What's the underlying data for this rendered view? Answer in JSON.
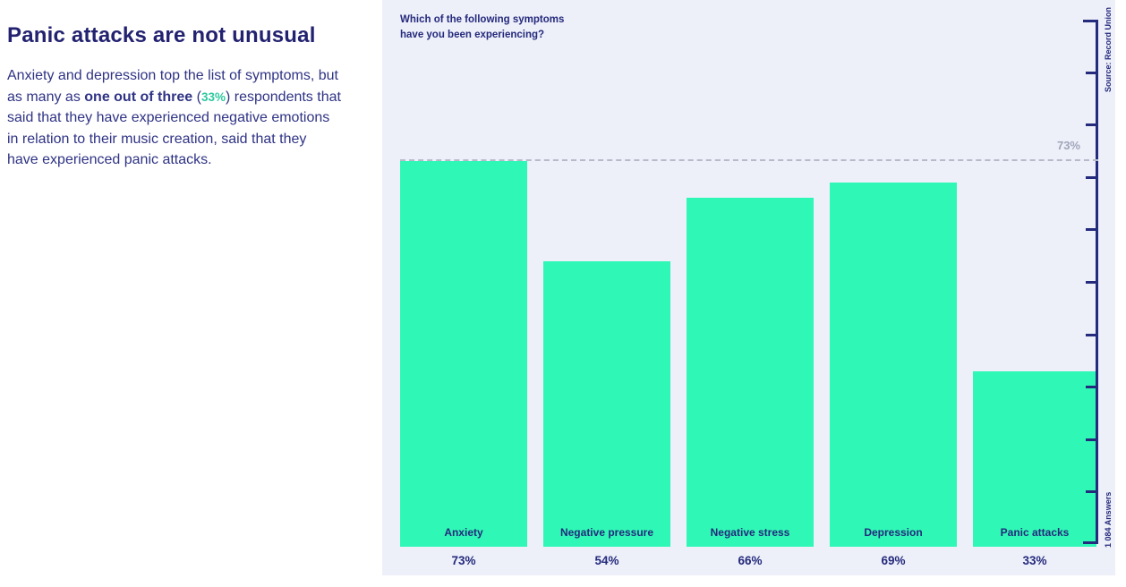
{
  "colors": {
    "title_navy": "#232270",
    "body_navy": "#2f3384",
    "chart_navy": "#242a7c",
    "green": "#2ff7b6",
    "green_text": "#2ec9a0",
    "panel_bg": "#edeff9",
    "gray_label": "#a0a5ba",
    "dash": "#b7bbc9"
  },
  "left_panel": {
    "title": "Panic attacks are not unusual",
    "body_lines": [
      [
        {
          "t": "Anxiety and depression top the list of symptoms, but"
        }
      ],
      [
        {
          "t": "as many as "
        },
        {
          "t": "one out of three",
          "style": "bold"
        },
        {
          "t": " ("
        },
        {
          "t": "33%",
          "style": "green"
        },
        {
          "t": ") respondents that"
        }
      ],
      [
        {
          "t": "said that they have experienced negative emotions"
        }
      ],
      [
        {
          "t": "in relation to their music creation, said that they"
        }
      ],
      [
        {
          "t": "have experienced panic attacks."
        }
      ]
    ]
  },
  "chart": {
    "title_line1": "Which of the following symptoms",
    "title_line2": "have you been experiencing?",
    "threshold_label": "73%",
    "source_label": "Source: Record Union",
    "answers_label": "1 084 Answers"
  },
  "chart_data": {
    "type": "bar",
    "title": "Which of the following symptoms have you been experiencing?",
    "categories": [
      "Anxiety",
      "Negative pressure",
      "Negative stress",
      "Depression",
      "Panic attacks"
    ],
    "values": [
      73,
      54,
      66,
      69,
      33
    ],
    "value_labels": [
      "73%",
      "54%",
      "66%",
      "69%",
      "33%"
    ],
    "ylabel": "",
    "xlabel": "",
    "ylim": [
      0,
      100
    ],
    "axis_tick_interval": 10,
    "axis_side": "right",
    "grid": false,
    "reference_line": {
      "value": 73,
      "label": "73%",
      "style": "dashed"
    },
    "bar_color": "#2ff7b6",
    "source": "Source: Record Union",
    "answers": "1 084 Answers"
  }
}
